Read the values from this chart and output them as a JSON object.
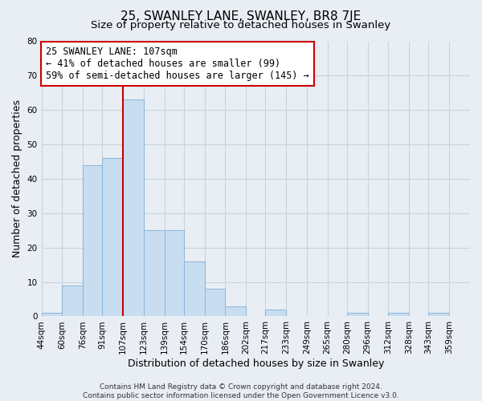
{
  "title": "25, SWANLEY LANE, SWANLEY, BR8 7JE",
  "subtitle": "Size of property relative to detached houses in Swanley",
  "xlabel": "Distribution of detached houses by size in Swanley",
  "ylabel": "Number of detached properties",
  "bin_labels": [
    "44sqm",
    "60sqm",
    "76sqm",
    "91sqm",
    "107sqm",
    "123sqm",
    "139sqm",
    "154sqm",
    "170sqm",
    "186sqm",
    "202sqm",
    "217sqm",
    "233sqm",
    "249sqm",
    "265sqm",
    "280sqm",
    "296sqm",
    "312sqm",
    "328sqm",
    "343sqm",
    "359sqm"
  ],
  "bin_edges": [
    44,
    60,
    76,
    91,
    107,
    123,
    139,
    154,
    170,
    186,
    202,
    217,
    233,
    249,
    265,
    280,
    296,
    312,
    328,
    343,
    359,
    375
  ],
  "counts": [
    1,
    9,
    44,
    46,
    63,
    25,
    25,
    16,
    8,
    3,
    0,
    2,
    0,
    0,
    0,
    1,
    0,
    1,
    0,
    1,
    0
  ],
  "bar_color": "#c8ddf0",
  "bar_edge_color": "#8cb4d8",
  "vline_x": 107,
  "vline_color": "#cc0000",
  "annotation_text": "25 SWANLEY LANE: 107sqm\n← 41% of detached houses are smaller (99)\n59% of semi-detached houses are larger (145) →",
  "annotation_box_color": "#ffffff",
  "annotation_box_edge": "#cc0000",
  "ylim": [
    0,
    80
  ],
  "yticks": [
    0,
    10,
    20,
    30,
    40,
    50,
    60,
    70,
    80
  ],
  "grid_color": "#c8d4e0",
  "background_color": "#e8eef4",
  "footer_text": "Contains HM Land Registry data © Crown copyright and database right 2024.\nContains public sector information licensed under the Open Government Licence v3.0.",
  "title_fontsize": 11,
  "subtitle_fontsize": 9.5,
  "axis_label_fontsize": 9,
  "tick_fontsize": 7.5,
  "annotation_fontsize": 8.5,
  "footer_fontsize": 6.5
}
